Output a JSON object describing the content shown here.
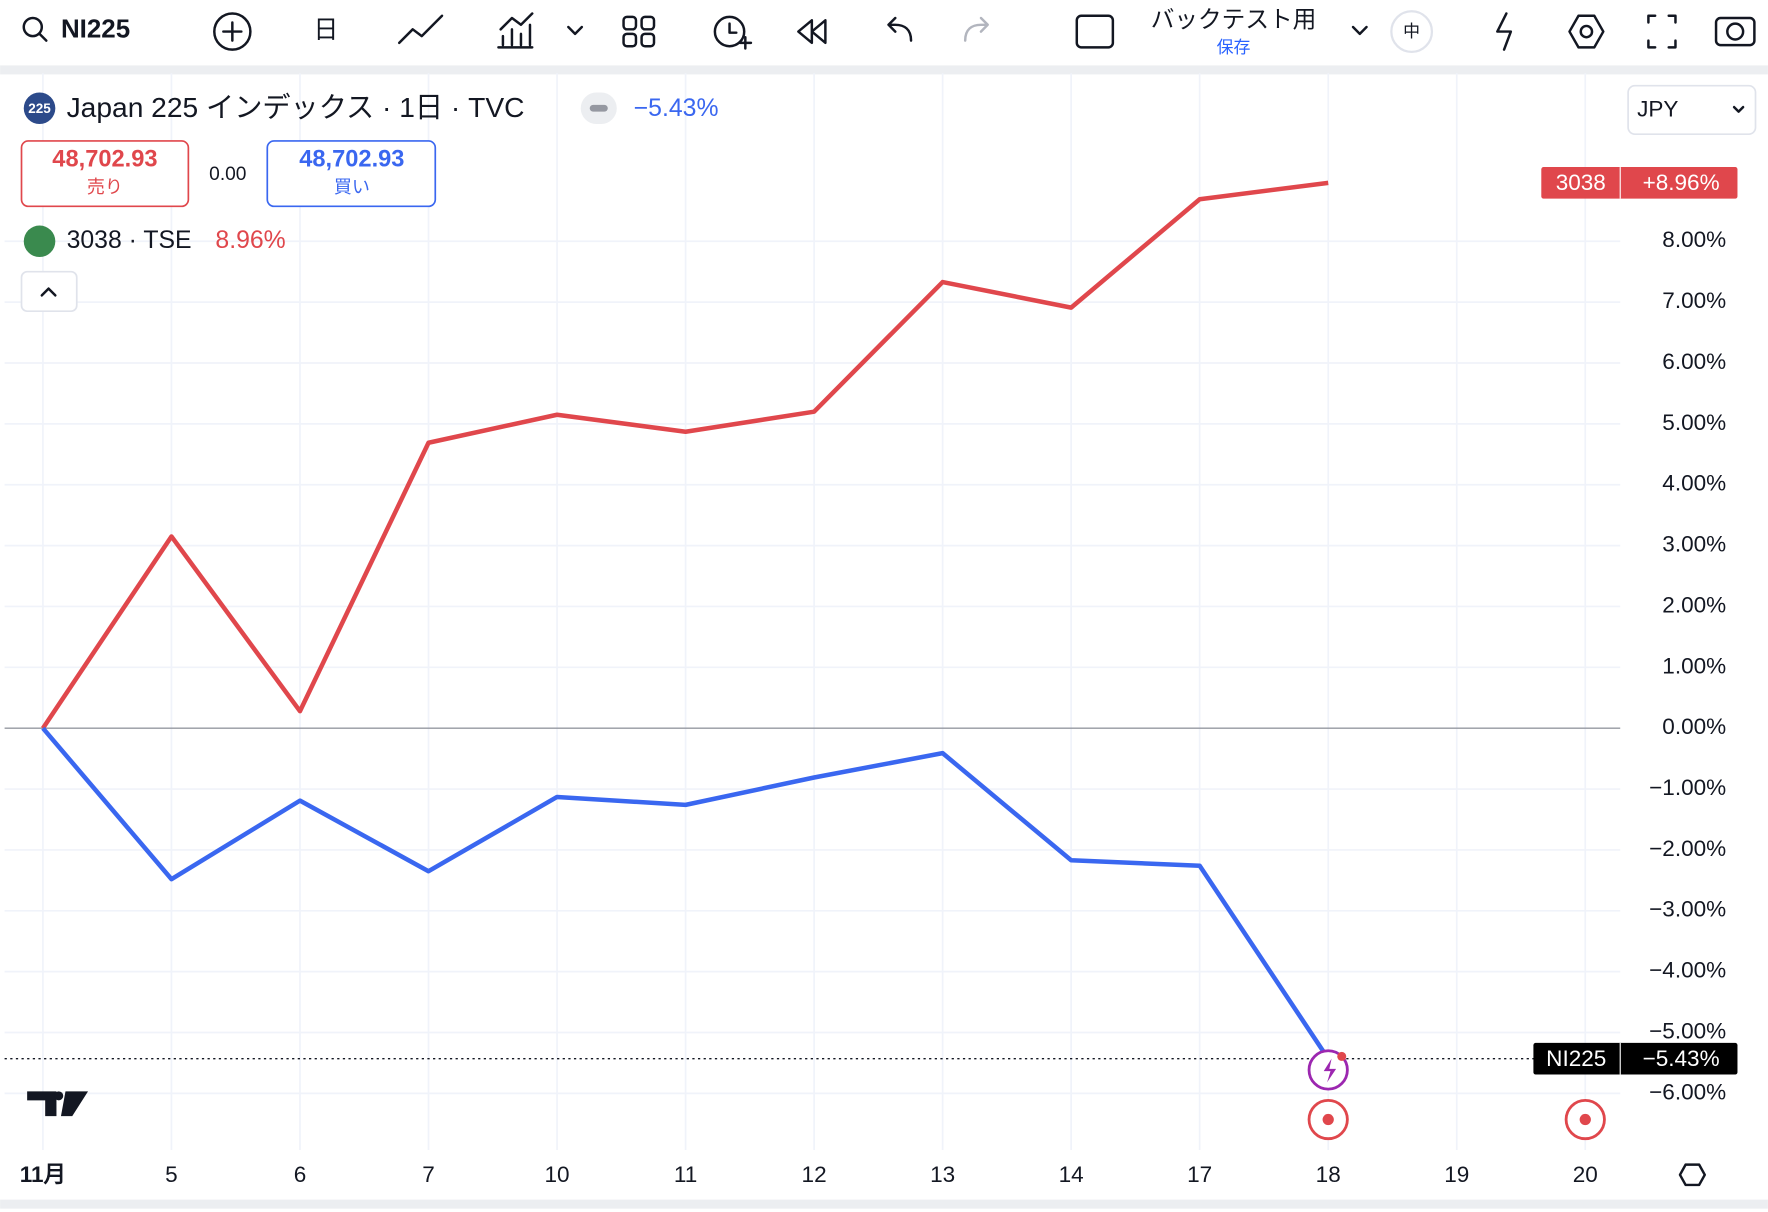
{
  "toolbar": {
    "symbol": "NI225",
    "interval": "日",
    "layout_name": "バックテスト用",
    "layout_status": "保存",
    "lang": "中"
  },
  "legend": {
    "main": "Japan 225 インデックス · 1日 · TVC",
    "main_change": "−5.43%",
    "sell_price": "48,702.93",
    "sell": "売り",
    "spread": "0.00",
    "buy_price": "48,702.93",
    "buy": "買い",
    "compare": "3038 · TSE",
    "compare_change": "8.96%"
  },
  "currency": "JPY",
  "chart_data": {
    "type": "line",
    "categories": [
      "11月",
      "5",
      "6",
      "7",
      "10",
      "11",
      "12",
      "13",
      "14",
      "17",
      "18",
      "19",
      "20"
    ],
    "series": [
      {
        "name": "3038",
        "color": "#e0474c",
        "price_tag": "+8.96%",
        "values": [
          0,
          3.15,
          0.28,
          4.69,
          5.15,
          4.87,
          5.2,
          7.33,
          6.91,
          8.69,
          8.96,
          null,
          null
        ]
      },
      {
        "name": "NI225",
        "color": "#3a67f0",
        "price_tag": "−5.43%",
        "values": [
          0,
          -2.48,
          -1.19,
          -2.35,
          -1.13,
          -1.26,
          -0.81,
          -0.41,
          -2.17,
          -2.26,
          -5.43,
          null,
          null
        ]
      }
    ],
    "ylim": [
      -6.93,
      10.76
    ],
    "yticks": [
      {
        "value": -6,
        "label": "−6.00%"
      },
      {
        "value": -5,
        "label": "−5.00%"
      },
      {
        "value": -4,
        "label": "−4.00%"
      },
      {
        "value": -3,
        "label": "−3.00%"
      },
      {
        "value": -2,
        "label": "−2.00%"
      },
      {
        "value": -1,
        "label": "−1.00%"
      },
      {
        "value": 0,
        "label": "0.00%"
      },
      {
        "value": 1,
        "label": "1.00%"
      },
      {
        "value": 2,
        "label": "2.00%"
      },
      {
        "value": 3,
        "label": "3.00%"
      },
      {
        "value": 4,
        "label": "4.00%"
      },
      {
        "value": 5,
        "label": "5.00%"
      },
      {
        "value": 6,
        "label": "6.00%"
      },
      {
        "value": 7,
        "label": "7.00%"
      },
      {
        "value": 8,
        "label": "8.00%"
      }
    ],
    "grid": true
  }
}
